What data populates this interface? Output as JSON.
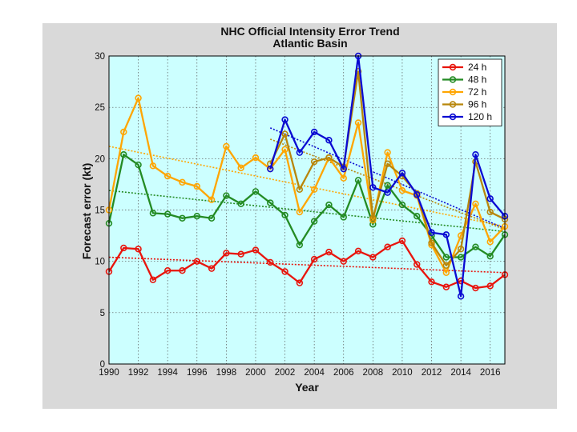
{
  "chart_data": {
    "type": "line",
    "title": "NHC Official Intensity Error Trend",
    "subtitle": "Atlantic Basin",
    "xlabel": "Year",
    "ylabel": "Forecast error (kt)",
    "xlim": [
      1990,
      2017
    ],
    "ylim": [
      0,
      30
    ],
    "grid": true,
    "legend_position": "top-right",
    "x_ticks": [
      1990,
      1992,
      1994,
      1996,
      1998,
      2000,
      2002,
      2004,
      2006,
      2008,
      2010,
      2012,
      2014,
      2016
    ],
    "y_ticks": [
      0,
      5,
      10,
      15,
      20,
      25,
      30
    ],
    "series": [
      {
        "name": "24 h",
        "color": "#e8140c",
        "x": [
          1990,
          1991,
          1992,
          1993,
          1994,
          1995,
          1996,
          1997,
          1998,
          1999,
          2000,
          2001,
          2002,
          2003,
          2004,
          2005,
          2006,
          2007,
          2008,
          2009,
          2010,
          2011,
          2012,
          2013,
          2014,
          2015,
          2016,
          2017
        ],
        "values": [
          9.0,
          11.3,
          11.2,
          8.2,
          9.1,
          9.1,
          10.0,
          9.3,
          10.8,
          10.7,
          11.1,
          9.9,
          9.0,
          7.9,
          10.2,
          10.9,
          10.0,
          11.0,
          10.4,
          11.4,
          12.0,
          9.7,
          8.0,
          7.5,
          8.1,
          7.4,
          7.6,
          8.7
        ],
        "trend": [
          10.4,
          8.9
        ]
      },
      {
        "name": "48 h",
        "color": "#238b23",
        "x": [
          1990,
          1991,
          1992,
          1993,
          1994,
          1995,
          1996,
          1997,
          1998,
          1999,
          2000,
          2001,
          2002,
          2003,
          2004,
          2005,
          2006,
          2007,
          2008,
          2009,
          2010,
          2011,
          2012,
          2013,
          2014,
          2015,
          2016,
          2017
        ],
        "values": [
          13.7,
          20.4,
          19.4,
          14.7,
          14.6,
          14.2,
          14.4,
          14.2,
          16.4,
          15.6,
          16.8,
          15.7,
          14.5,
          11.6,
          13.9,
          15.5,
          14.3,
          17.9,
          13.6,
          17.4,
          15.5,
          14.4,
          12.5,
          10.4,
          10.4,
          11.4,
          10.5,
          12.6
        ],
        "trend": [
          16.9,
          12.9
        ]
      },
      {
        "name": "72 h",
        "color": "#ffa500",
        "x": [
          1990,
          1991,
          1992,
          1993,
          1994,
          1995,
          1996,
          1997,
          1998,
          1999,
          2000,
          2001,
          2002,
          2003,
          2004,
          2005,
          2006,
          2007,
          2008,
          2009,
          2010,
          2011,
          2012,
          2013,
          2014,
          2015,
          2016,
          2017
        ],
        "values": [
          15.0,
          22.6,
          25.9,
          19.3,
          18.3,
          17.7,
          17.3,
          16.0,
          21.2,
          19.1,
          20.1,
          19.0,
          20.9,
          14.8,
          17.0,
          20.1,
          18.1,
          23.5,
          14.0,
          20.6,
          16.9,
          16.4,
          11.6,
          8.9,
          12.5,
          15.6,
          11.9,
          13.4
        ],
        "trend": [
          21.2,
          13.4
        ]
      },
      {
        "name": "96 h",
        "color": "#b8860b",
        "x": [
          2001,
          2002,
          2003,
          2004,
          2005,
          2006,
          2007,
          2008,
          2009,
          2010,
          2011,
          2012,
          2013,
          2014,
          2015,
          2016,
          2017
        ],
        "values": [
          19.5,
          22.4,
          17.0,
          19.7,
          20.1,
          19.2,
          28.5,
          14.2,
          19.5,
          18.3,
          16.6,
          11.8,
          9.6,
          11.2,
          19.7,
          14.8,
          14.1
        ],
        "trend": [
          21.9,
          13.1
        ]
      },
      {
        "name": "120 h",
        "color": "#0a0ad2",
        "x": [
          2001,
          2002,
          2003,
          2004,
          2005,
          2006,
          2007,
          2008,
          2009,
          2010,
          2011,
          2012,
          2013,
          2014,
          2015,
          2016,
          2017
        ],
        "values": [
          19.0,
          23.8,
          20.6,
          22.6,
          21.8,
          19.0,
          30.0,
          17.2,
          16.7,
          18.6,
          16.5,
          12.8,
          12.6,
          6.6,
          20.4,
          16.1,
          14.4
        ],
        "trend": [
          23.0,
          13.2
        ]
      }
    ]
  }
}
